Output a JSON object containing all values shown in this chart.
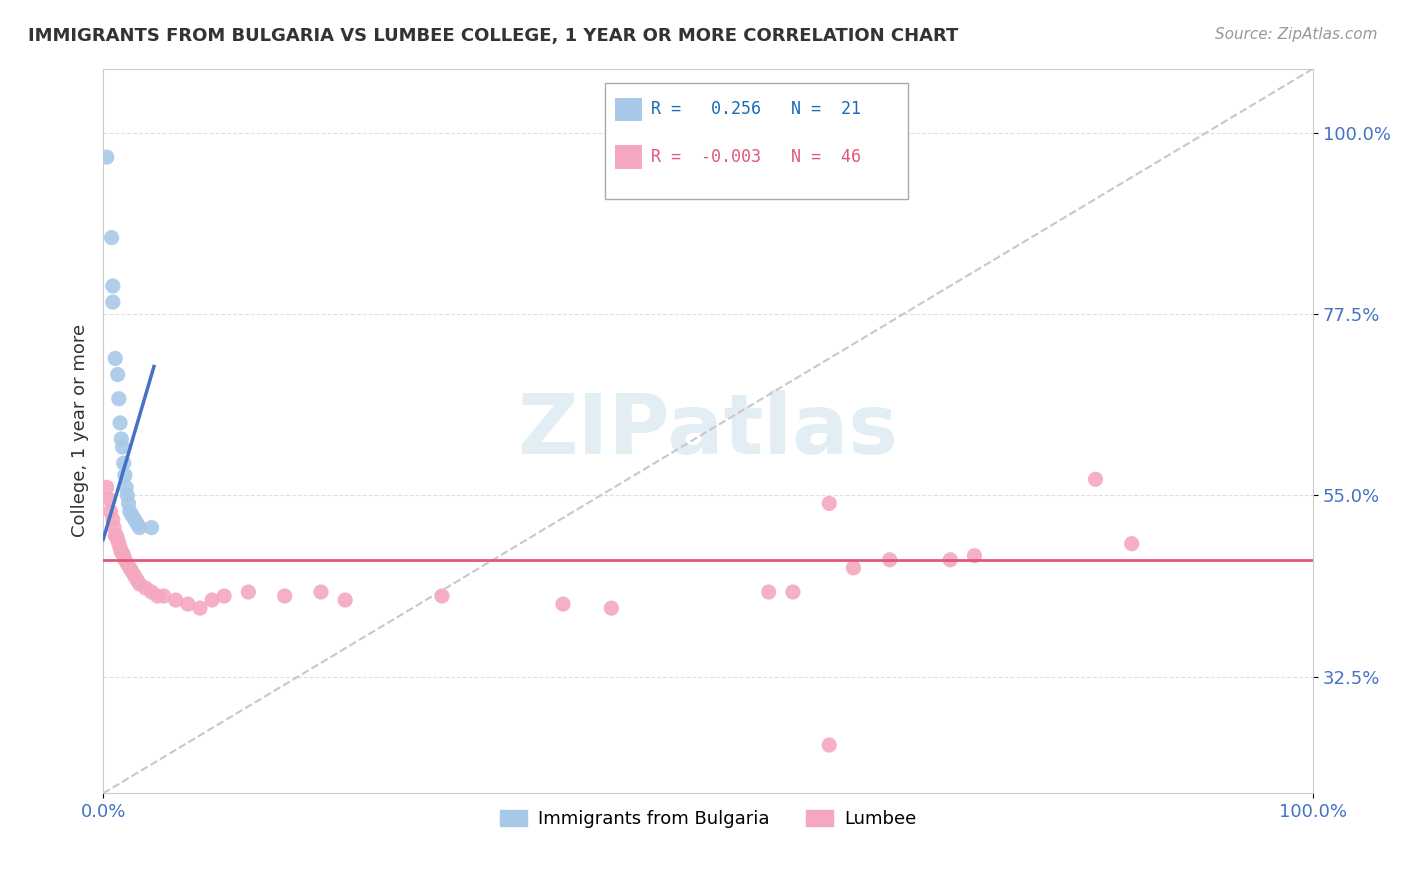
{
  "title": "IMMIGRANTS FROM BULGARIA VS LUMBEE COLLEGE, 1 YEAR OR MORE CORRELATION CHART",
  "source": "Source: ZipAtlas.com",
  "ylabel": "College, 1 year or more",
  "xlim": [
    0.0,
    1.0
  ],
  "ylim": [
    0.18,
    1.08
  ],
  "x_ticks": [
    0.0,
    1.0
  ],
  "x_tick_labels": [
    "0.0%",
    "100.0%"
  ],
  "y_ticks": [
    0.325,
    0.55,
    0.775,
    1.0
  ],
  "y_tick_labels": [
    "32.5%",
    "55.0%",
    "77.5%",
    "100.0%"
  ],
  "blue_color": "#a8c8e8",
  "pink_color": "#f4a8c0",
  "blue_line_color": "#4472c4",
  "pink_line_color": "#e05878",
  "dash_color": "#c8c8c8",
  "bg_color": "#ffffff",
  "grid_color": "#e0e0e0",
  "legend_r1": "0.256",
  "legend_n1": "21",
  "legend_r2": "-0.003",
  "legend_n2": "46",
  "blue_scatter_x": [
    0.003,
    0.007,
    0.008,
    0.008,
    0.01,
    0.012,
    0.013,
    0.014,
    0.015,
    0.016,
    0.017,
    0.018,
    0.019,
    0.02,
    0.021,
    0.022,
    0.024,
    0.026,
    0.028,
    0.03,
    0.04
  ],
  "blue_scatter_y": [
    0.97,
    0.87,
    0.81,
    0.79,
    0.72,
    0.7,
    0.67,
    0.64,
    0.62,
    0.61,
    0.59,
    0.575,
    0.56,
    0.55,
    0.54,
    0.53,
    0.525,
    0.52,
    0.515,
    0.51,
    0.51
  ],
  "pink_scatter_x": [
    0.003,
    0.005,
    0.006,
    0.008,
    0.009,
    0.01,
    0.011,
    0.012,
    0.013,
    0.014,
    0.015,
    0.016,
    0.017,
    0.018,
    0.02,
    0.022,
    0.024,
    0.026,
    0.028,
    0.03,
    0.035,
    0.04,
    0.045,
    0.05,
    0.06,
    0.07,
    0.08,
    0.09,
    0.1,
    0.12,
    0.15,
    0.18,
    0.2,
    0.28,
    0.38,
    0.42,
    0.55,
    0.57,
    0.6,
    0.62,
    0.65,
    0.7,
    0.72,
    0.82,
    0.85,
    0.6
  ],
  "pink_scatter_y": [
    0.56,
    0.545,
    0.53,
    0.52,
    0.51,
    0.5,
    0.5,
    0.495,
    0.49,
    0.485,
    0.48,
    0.478,
    0.475,
    0.47,
    0.465,
    0.46,
    0.455,
    0.45,
    0.445,
    0.44,
    0.435,
    0.43,
    0.425,
    0.425,
    0.42,
    0.415,
    0.41,
    0.42,
    0.425,
    0.43,
    0.425,
    0.43,
    0.42,
    0.425,
    0.415,
    0.41,
    0.43,
    0.43,
    0.54,
    0.46,
    0.47,
    0.47,
    0.475,
    0.57,
    0.49,
    0.24
  ],
  "pink_hline_y": 0.47,
  "blue_line_x0": 0.0,
  "blue_line_x1": 0.042,
  "blue_line_y0": 0.495,
  "blue_line_y1": 0.71,
  "dash_line_x0": 0.0,
  "dash_line_x1": 1.0,
  "dash_line_y0": 0.18,
  "dash_line_y1": 1.08
}
